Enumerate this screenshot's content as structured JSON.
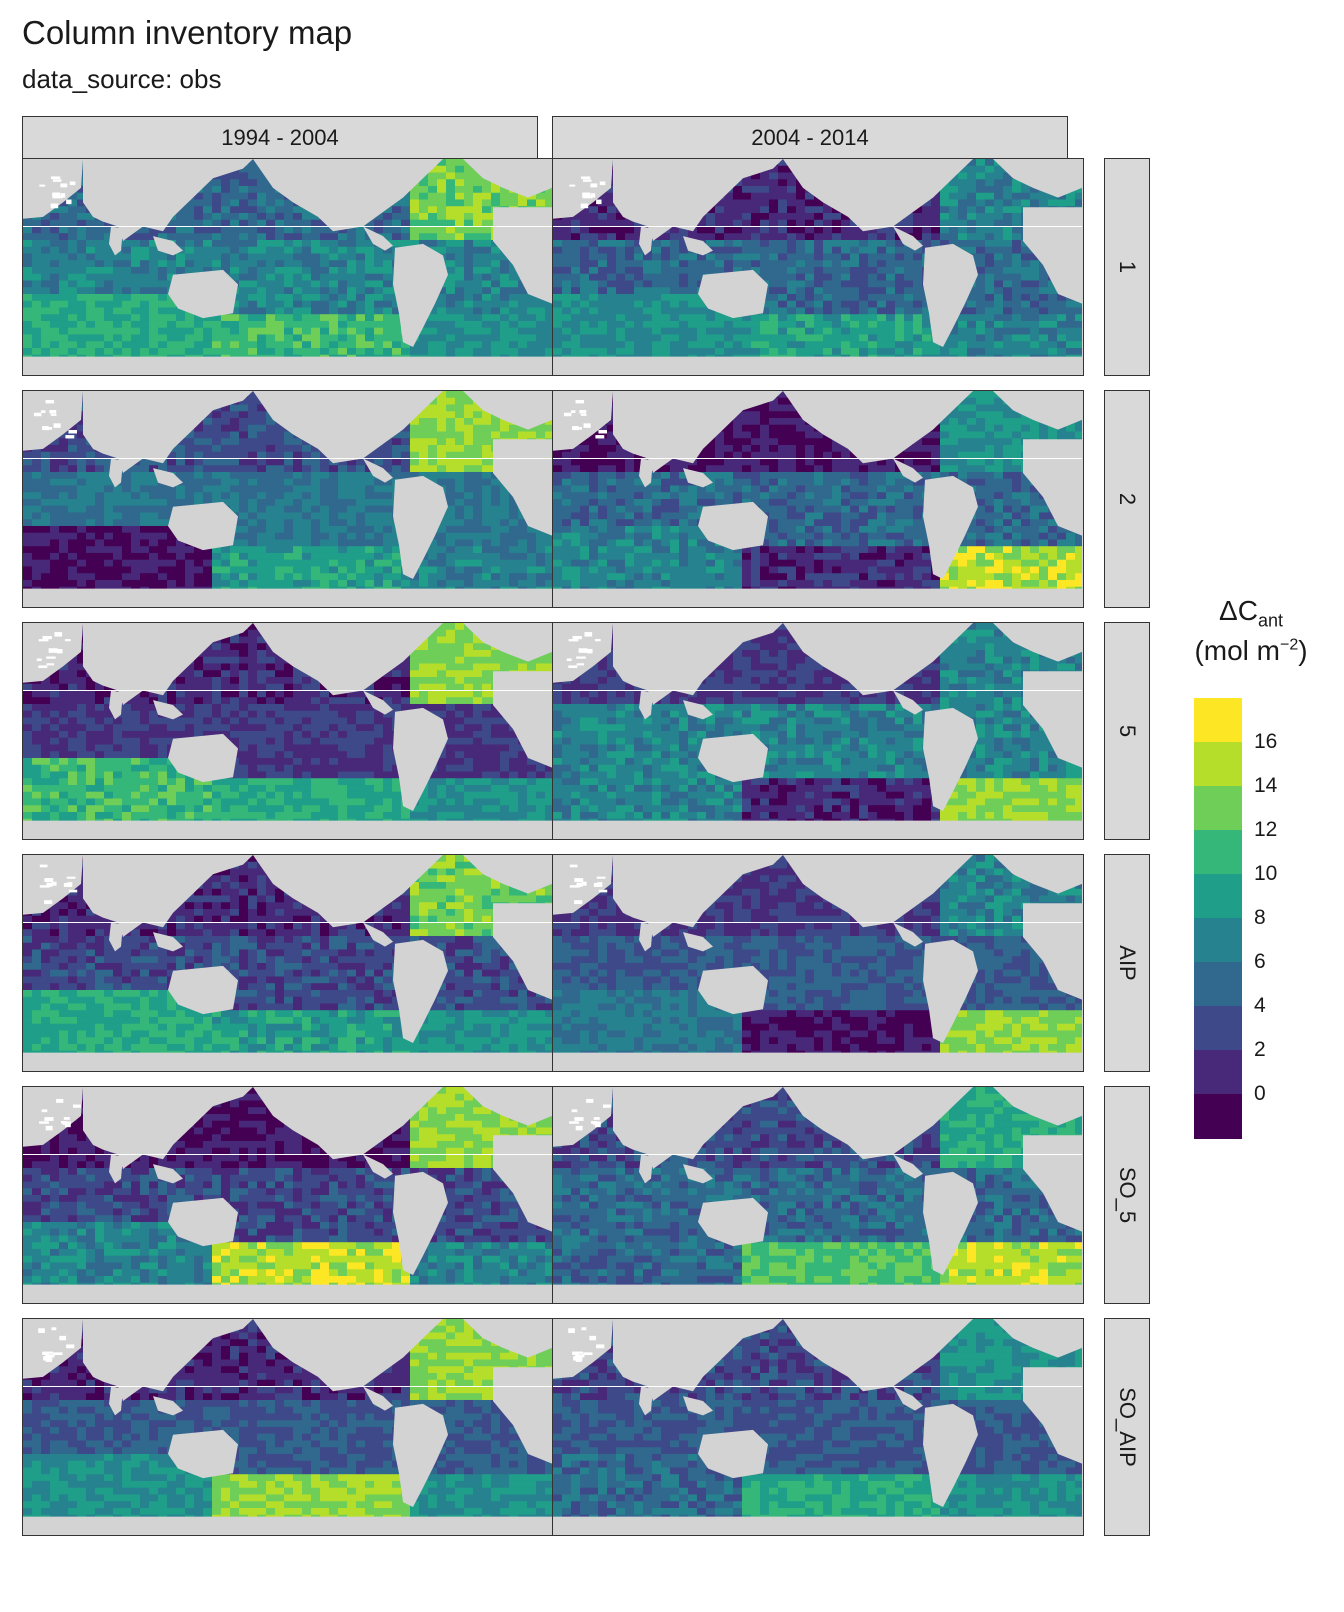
{
  "title": "Column inventory map",
  "subtitle": "data_source: obs",
  "columns": [
    "1994 - 2004",
    "2004 - 2014"
  ],
  "rows": [
    "1",
    "2",
    "5",
    "AIP",
    "SO_5",
    "SO_AIP"
  ],
  "legend": {
    "title_main": "ΔC",
    "title_sub": "ant",
    "unit_pre": "(mol m",
    "unit_sup": "−2",
    "unit_post": ")",
    "breaks": [
      "16",
      "14",
      "12",
      "10",
      "8",
      "6",
      "4",
      "2",
      "0"
    ],
    "colors": [
      "#fde725",
      "#b5de2b",
      "#6ece58",
      "#35b779",
      "#1f9e89",
      "#26828e",
      "#31688e",
      "#3e4989",
      "#482878",
      "#440154"
    ]
  },
  "map": {
    "land_color": "#d3d3d3",
    "ice_color": "#ffffff"
  },
  "chart_data": {
    "type": "heatmap",
    "variable": "ΔCant",
    "unit": "mol m−2",
    "facet_columns": [
      "1994 - 2004",
      "2004 - 2014"
    ],
    "facet_rows": [
      "1",
      "2",
      "5",
      "AIP",
      "SO_5",
      "SO_AIP"
    ],
    "color_scale_breaks": [
      0,
      2,
      4,
      6,
      8,
      10,
      12,
      14,
      16
    ],
    "color_scale_range": [
      -1,
      18
    ]
  }
}
